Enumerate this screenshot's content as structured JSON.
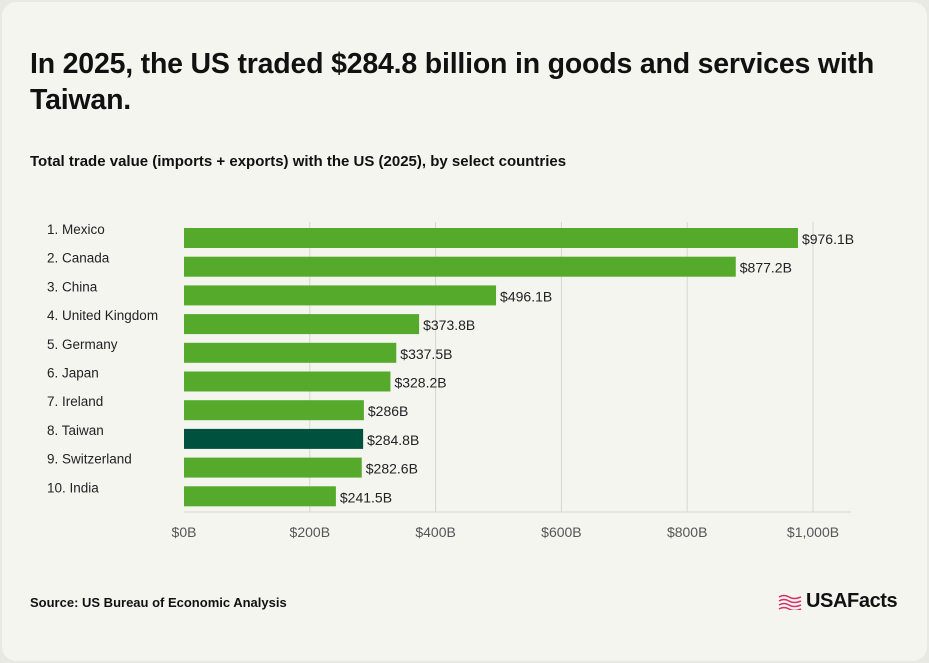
{
  "title": "In 2025, the US traded $284.8 billion in goods and services with Taiwan.",
  "subtitle": "Total trade value (imports + exports) with the US (2025), by select countries",
  "source": "Source: US Bureau of Economic Analysis",
  "logo_text": "USAFacts",
  "colors": {
    "bar": "#55aa2b",
    "highlight": "#00523f",
    "grid": "#d6d6d1",
    "axis_text": "#555555",
    "logo_flag": "#d6336c"
  },
  "chart_data": {
    "type": "bar",
    "orientation": "horizontal",
    "categories": [
      "1. Mexico",
      "2. Canada",
      "3. China",
      "4. United Kingdom",
      "5. Germany",
      "6. Japan",
      "7. Ireland",
      "8. Taiwan",
      "9. Switzerland",
      "10. India"
    ],
    "values": [
      976.1,
      877.2,
      496.1,
      373.8,
      337.5,
      328.2,
      286,
      284.8,
      282.6,
      241.5
    ],
    "value_labels": [
      "$976.1B",
      "$877.2B",
      "$496.1B",
      "$373.8B",
      "$337.5B",
      "$328.2B",
      "$286B",
      "$284.8B",
      "$282.6B",
      "$241.5B"
    ],
    "highlight_category": "8. Taiwan",
    "xlim": [
      0,
      1000
    ],
    "x_ticks": [
      0,
      200,
      400,
      600,
      800,
      1000
    ],
    "x_tick_labels": [
      "$0B",
      "$200B",
      "$400B",
      "$600B",
      "$800B",
      "$1,000B"
    ],
    "grid": true
  }
}
